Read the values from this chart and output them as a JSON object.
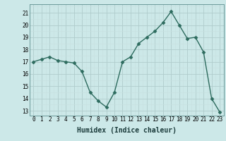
{
  "x": [
    0,
    1,
    2,
    3,
    4,
    5,
    6,
    7,
    8,
    9,
    10,
    11,
    12,
    13,
    14,
    15,
    16,
    17,
    18,
    19,
    20,
    21,
    22,
    23
  ],
  "y": [
    17.0,
    17.2,
    17.4,
    17.1,
    17.0,
    16.9,
    16.2,
    14.5,
    13.8,
    13.3,
    14.5,
    17.0,
    17.4,
    18.5,
    19.0,
    19.5,
    20.2,
    21.1,
    20.0,
    18.9,
    19.0,
    17.8,
    14.0,
    12.9
  ],
  "line_color": "#2d6b5e",
  "marker": "D",
  "marker_size": 2.5,
  "linewidth": 1.0,
  "bg_color": "#cce8e8",
  "grid_color_major": "#b0cccc",
  "grid_color_minor": "#c8e0e0",
  "xlabel": "Humidex (Indice chaleur)",
  "ylabel": "",
  "ylim": [
    12.6,
    21.7
  ],
  "xlim": [
    -0.5,
    23.5
  ],
  "yticks": [
    13,
    14,
    15,
    16,
    17,
    18,
    19,
    20,
    21
  ],
  "xticks": [
    0,
    1,
    2,
    3,
    4,
    5,
    6,
    7,
    8,
    9,
    10,
    11,
    12,
    13,
    14,
    15,
    16,
    17,
    18,
    19,
    20,
    21,
    22,
    23
  ],
  "tick_fontsize": 5.5,
  "xlabel_fontsize": 7.0
}
